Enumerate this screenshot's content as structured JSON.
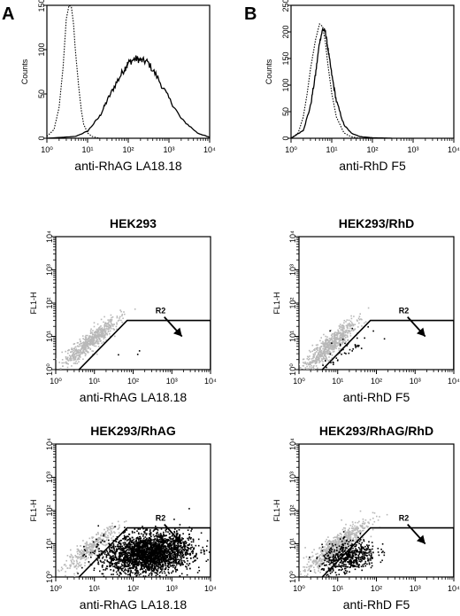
{
  "panel_letters": [
    "A",
    "B"
  ],
  "chart_data": [
    {
      "type": "line",
      "panel": "A",
      "title": "",
      "xlabel": "anti-RhAG  LA18.18",
      "ylabel": "Counts",
      "x_scale": "log",
      "xlim": [
        1,
        10000
      ],
      "ylim": [
        0,
        150
      ],
      "x_ticks": [
        "10⁰",
        "10¹",
        "10²",
        "10³",
        "10⁴"
      ],
      "y_ticks": [
        "0",
        "50",
        "100",
        "150"
      ],
      "grid": false,
      "series": [
        {
          "style": "dotted",
          "x": [
            1,
            1.5,
            2,
            2.5,
            3,
            3.5,
            4,
            4.5,
            5,
            6,
            7,
            8,
            10,
            13,
            20
          ],
          "y": [
            2,
            10,
            35,
            80,
            135,
            150,
            148,
            130,
            100,
            60,
            32,
            16,
            6,
            2,
            0
          ]
        },
        {
          "style": "solid",
          "x": [
            1,
            5,
            10,
            20,
            30,
            50,
            80,
            100,
            150,
            200,
            300,
            500,
            1000,
            2000,
            5000,
            10000
          ],
          "y": [
            0,
            2,
            8,
            25,
            42,
            62,
            78,
            85,
            90,
            88,
            86,
            70,
            45,
            22,
            6,
            1
          ]
        }
      ]
    },
    {
      "type": "line",
      "panel": "B",
      "title": "",
      "xlabel": "anti-RhD F5",
      "ylabel": "Counts",
      "x_scale": "log",
      "xlim": [
        1,
        10000
      ],
      "ylim": [
        0,
        250
      ],
      "x_ticks": [
        "10⁰",
        "10¹",
        "10²",
        "10³",
        "10⁴"
      ],
      "y_ticks": [
        "0",
        "50",
        "100",
        "150",
        "200",
        "250"
      ],
      "grid": false,
      "series": [
        {
          "style": "dotted",
          "x": [
            1,
            1.5,
            2,
            2.5,
            3,
            4,
            5,
            6,
            7,
            8,
            10,
            13,
            20,
            30,
            50
          ],
          "y": [
            0,
            10,
            40,
            85,
            130,
            185,
            215,
            210,
            180,
            140,
            85,
            40,
            10,
            3,
            0
          ]
        },
        {
          "style": "solid",
          "x": [
            1,
            2,
            3,
            4,
            5,
            6,
            7,
            8,
            10,
            13,
            20,
            30,
            50,
            100,
            300
          ],
          "y": [
            0,
            15,
            60,
            120,
            180,
            205,
            200,
            170,
            120,
            70,
            25,
            10,
            3,
            1,
            0
          ]
        }
      ]
    },
    {
      "type": "scatter",
      "panel": "A",
      "title": "HEK293",
      "xlabel": "anti-RhAG  LA18.18",
      "ylabel": "FL1-H",
      "x_scale": "log",
      "y_scale": "log",
      "xlim": [
        1,
        10000
      ],
      "ylim": [
        1,
        10000
      ],
      "x_ticks": [
        "10⁰",
        "10¹",
        "10²",
        "10³",
        "10⁴"
      ],
      "y_ticks": [
        "10⁰",
        "10¹",
        "10²",
        "10³",
        "10⁴"
      ],
      "gate_label": "R2",
      "gate_polygon": [
        [
          4,
          1
        ],
        [
          70,
          30
        ],
        [
          10000,
          30
        ],
        [
          10000,
          1
        ]
      ],
      "populations": [
        {
          "color": "#b8b8b8",
          "n": 600,
          "cx": 8,
          "cy": 7,
          "sx": 0.35,
          "sy": 0.35,
          "rho": 0.9
        },
        {
          "color": "#000000",
          "n": 3,
          "cx": 40,
          "cy": 3,
          "sx": 0.3,
          "sy": 0.2,
          "rho": 0
        }
      ]
    },
    {
      "type": "scatter",
      "panel": "B",
      "title": "HEK293/RhD",
      "xlabel": "anti-RhD F5",
      "ylabel": "FL1-H",
      "x_scale": "log",
      "y_scale": "log",
      "xlim": [
        1,
        10000
      ],
      "ylim": [
        1,
        10000
      ],
      "x_ticks": [
        "10⁰",
        "10¹",
        "10²",
        "10³",
        "10⁴"
      ],
      "y_ticks": [
        "10⁰",
        "10¹",
        "10²",
        "10³",
        "10⁴"
      ],
      "gate_label": "R2",
      "gate_polygon": [
        [
          4,
          1
        ],
        [
          70,
          30
        ],
        [
          10000,
          30
        ],
        [
          10000,
          1
        ]
      ],
      "populations": [
        {
          "color": "#b8b8b8",
          "n": 650,
          "cx": 6,
          "cy": 5,
          "sx": 0.35,
          "sy": 0.38,
          "rho": 0.9
        },
        {
          "color": "#000000",
          "n": 45,
          "cx": 15,
          "cy": 4,
          "sx": 0.4,
          "sy": 0.3,
          "rho": 0.3
        }
      ]
    },
    {
      "type": "scatter",
      "panel": "A",
      "title": "HEK293/RhAG",
      "xlabel": "anti-RhAG  LA18.18",
      "ylabel": "FL1-H",
      "x_scale": "log",
      "y_scale": "log",
      "xlim": [
        1,
        10000
      ],
      "ylim": [
        1,
        10000
      ],
      "x_ticks": [
        "10⁰",
        "10¹",
        "10²",
        "10³",
        "10⁴"
      ],
      "y_ticks": [
        "10⁰",
        "10¹",
        "10²",
        "10³",
        "10⁴"
      ],
      "gate_label": "R2",
      "gate_polygon": [
        [
          4,
          1
        ],
        [
          70,
          30
        ],
        [
          10000,
          30
        ],
        [
          10000,
          1
        ]
      ],
      "populations": [
        {
          "color": "#b8b8b8",
          "n": 350,
          "cx": 8,
          "cy": 7,
          "sx": 0.35,
          "sy": 0.35,
          "rho": 0.9
        },
        {
          "color": "#000000",
          "n": 2600,
          "cx": 250,
          "cy": 5,
          "sx": 0.55,
          "sy": 0.3,
          "rho": 0.15
        }
      ]
    },
    {
      "type": "scatter",
      "panel": "B",
      "title": "HEK293/RhAG/RhD",
      "xlabel": "anti-RhD F5",
      "ylabel": "FL1-H",
      "x_scale": "log",
      "y_scale": "log",
      "xlim": [
        1,
        10000
      ],
      "ylim": [
        1,
        10000
      ],
      "x_ticks": [
        "10⁰",
        "10¹",
        "10²",
        "10³",
        "10⁴"
      ],
      "y_ticks": [
        "10⁰",
        "10¹",
        "10²",
        "10³",
        "10⁴"
      ],
      "gate_label": "R2",
      "gate_polygon": [
        [
          4,
          1
        ],
        [
          70,
          30
        ],
        [
          10000,
          30
        ],
        [
          10000,
          1
        ]
      ],
      "populations": [
        {
          "color": "#b8b8b8",
          "n": 650,
          "cx": 9,
          "cy": 8,
          "sx": 0.4,
          "sy": 0.4,
          "rho": 0.88
        },
        {
          "color": "#000000",
          "n": 550,
          "cx": 20,
          "cy": 4,
          "sx": 0.35,
          "sy": 0.25,
          "rho": 0.3
        }
      ]
    }
  ]
}
